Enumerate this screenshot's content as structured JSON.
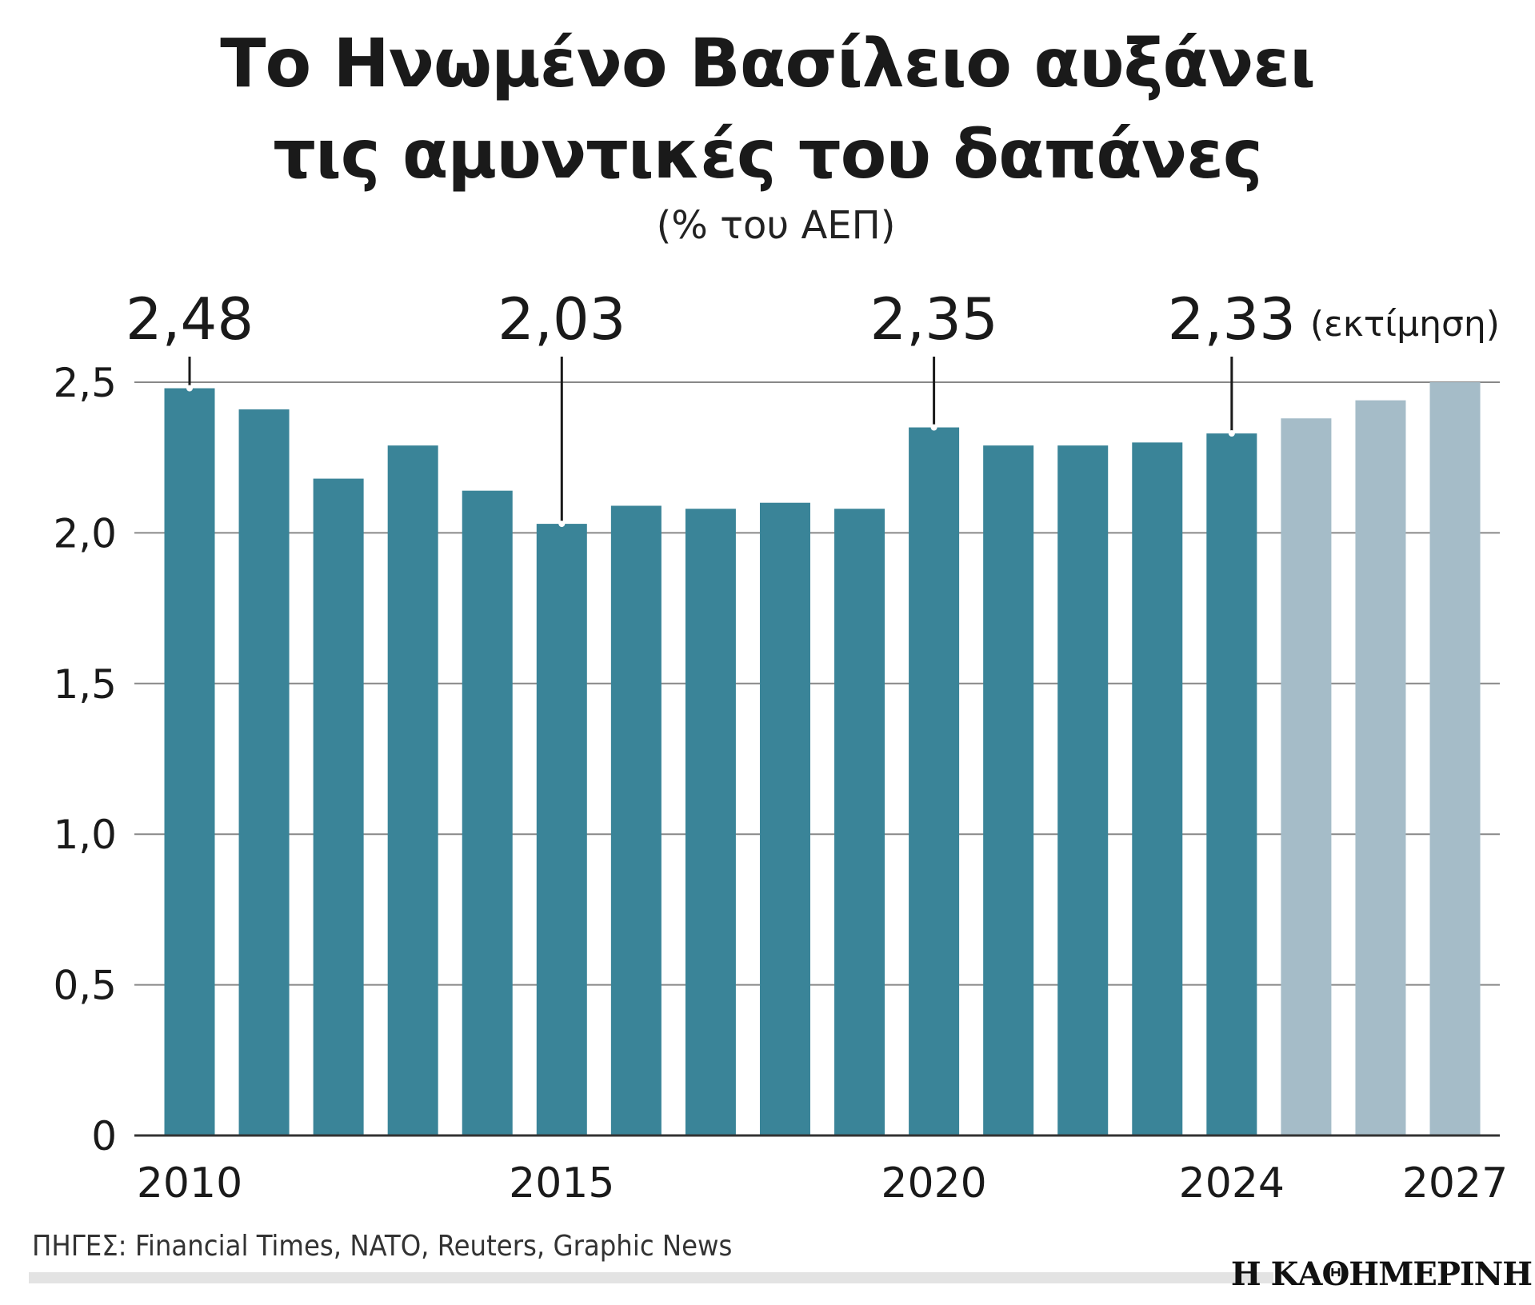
{
  "title_lines": [
    "Το Ηνωμένο Βασίλειο αυξάνει",
    "τις αμυντικές του δαπάνες"
  ],
  "subtitle": "(% του ΑΕΠ)",
  "colors": {
    "actual": "#3a8498",
    "estimate": "#a5bcc8",
    "grid": "#888888",
    "axis": "#333333"
  },
  "chart_data": {
    "type": "bar",
    "title": "Το Ηνωμένο Βασίλειο αυξάνει τις αμυντικές του δαπάνες",
    "ylabel": "% του ΑΕΠ",
    "xlabel": "",
    "ylim": [
      0,
      2.5
    ],
    "yticks": [
      {
        "value": 0,
        "label": "0"
      },
      {
        "value": 0.5,
        "label": "0,5"
      },
      {
        "value": 1.0,
        "label": "1,0"
      },
      {
        "value": 1.5,
        "label": "1,5"
      },
      {
        "value": 2.0,
        "label": "2,0"
      },
      {
        "value": 2.5,
        "label": "2,5"
      }
    ],
    "grid": true,
    "categories": [
      "2010",
      "2011",
      "2012",
      "2013",
      "2014",
      "2015",
      "2016",
      "2017",
      "2018",
      "2019",
      "2020",
      "2021",
      "2022",
      "2023",
      "2024",
      "2025",
      "2026",
      "2027"
    ],
    "values": [
      2.48,
      2.41,
      2.18,
      2.29,
      2.14,
      2.03,
      2.09,
      2.08,
      2.1,
      2.08,
      2.35,
      2.29,
      2.29,
      2.3,
      2.33,
      2.38,
      2.44,
      2.5
    ],
    "estimate": [
      false,
      false,
      false,
      false,
      false,
      false,
      false,
      false,
      false,
      false,
      false,
      false,
      false,
      false,
      false,
      true,
      true,
      true
    ],
    "x_tick_labels": [
      {
        "year": "2010",
        "label": "2010"
      },
      {
        "year": "2015",
        "label": "2015"
      },
      {
        "year": "2020",
        "label": "2020"
      },
      {
        "year": "2024",
        "label": "2024"
      },
      {
        "year": "2027",
        "label": "2027"
      }
    ],
    "annotations": [
      {
        "year": "2010",
        "label": "2,48",
        "note": ""
      },
      {
        "year": "2015",
        "label": "2,03",
        "note": ""
      },
      {
        "year": "2020",
        "label": "2,35",
        "note": ""
      },
      {
        "year": "2024",
        "label": "2,33",
        "note": "(εκτίμηση)"
      }
    ]
  },
  "source": "ΠΗΓΕΣ: Financial Times, NATO, Reuters, Graphic News",
  "brand": "Η ΚΑΘΗΜΕΡΙΝΗ"
}
